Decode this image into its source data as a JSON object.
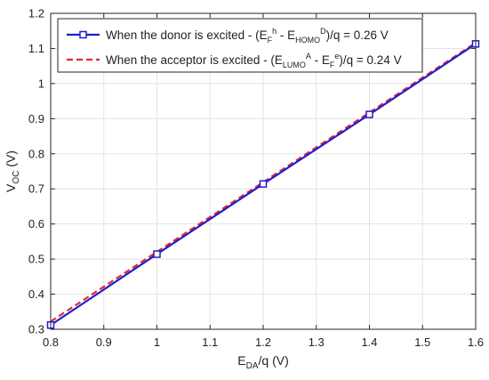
{
  "chart_data": {
    "type": "line",
    "xlabel": {
      "main": "E",
      "sub": "DA",
      "rest": "/q (V)"
    },
    "ylabel": {
      "main": "V",
      "sub": "OC",
      "rest": " (V)"
    },
    "xlim": [
      0.8,
      1.6
    ],
    "ylim": [
      0.3,
      1.2
    ],
    "xticks": [
      0.8,
      0.9,
      1.0,
      1.1,
      1.2,
      1.3,
      1.4,
      1.5,
      1.6
    ],
    "yticks": [
      0.3,
      0.4,
      0.5,
      0.6,
      0.7,
      0.8,
      0.9,
      1.0,
      1.1,
      1.2
    ],
    "xtick_labels": [
      "0.8",
      "0.9",
      "1",
      "1.1",
      "1.2",
      "1.3",
      "1.4",
      "1.5",
      "1.6"
    ],
    "ytick_labels": [
      "0.3",
      "0.4",
      "0.5",
      "0.6",
      "0.7",
      "0.8",
      "0.9",
      "1",
      "1.1",
      "1.2"
    ],
    "grid": true,
    "legend_position": "top-left",
    "series": [
      {
        "name": "When the donor is excited - (E_F^h - E_HOMO^D)/q = 0.26 V",
        "legend": [
          {
            "t": "When the donor is excited - (E"
          },
          {
            "t": "F",
            "sub": true
          },
          {
            "t": "h",
            "sup": true
          },
          {
            "t": " - E"
          },
          {
            "t": "HOMO",
            "sub": true
          },
          {
            "t": "D",
            "sup": true
          },
          {
            "t": ")/q = 0.26 V"
          }
        ],
        "color": "#1f1fcc",
        "style": "solid",
        "marker": "square",
        "x": [
          0.8,
          1.0,
          1.2,
          1.4,
          1.6
        ],
        "y": [
          0.312,
          0.514,
          0.714,
          0.912,
          1.113
        ]
      },
      {
        "name": "When the acceptor is excited - (E_LUMO^A - E_F^e)/q = 0.24 V",
        "legend": [
          {
            "t": "When the acceptor is excited - (E"
          },
          {
            "t": "LUMO",
            "sub": true
          },
          {
            "t": "A",
            "sup": true
          },
          {
            "t": " - E"
          },
          {
            "t": "F",
            "sub": true
          },
          {
            "t": "e",
            "sup": true
          },
          {
            "t": ")/q = 0.24 V"
          }
        ],
        "color": "#e6262e",
        "style": "dashed",
        "marker": "none",
        "x": [
          0.8,
          1.6
        ],
        "y": [
          0.322,
          1.116
        ]
      }
    ]
  }
}
